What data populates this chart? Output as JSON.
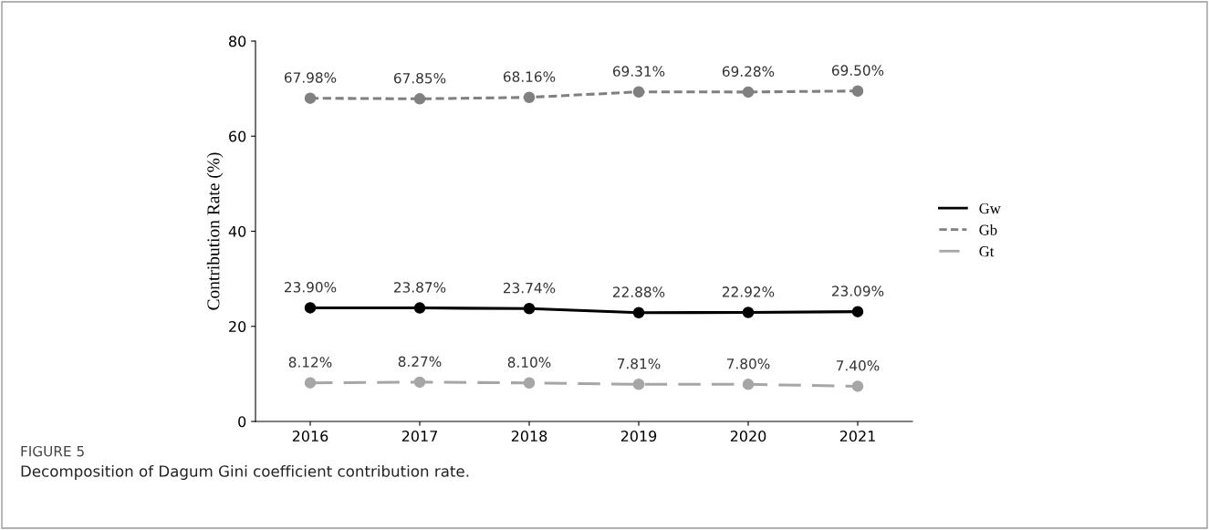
{
  "chart_data": {
    "type": "line",
    "ylabel": "Contribution Rate (%)",
    "categories": [
      "2016",
      "2017",
      "2018",
      "2019",
      "2020",
      "2021"
    ],
    "ylim": [
      0,
      80
    ],
    "yticks": [
      0,
      20,
      40,
      60,
      80
    ],
    "grid": false,
    "legend": "right",
    "marker": "circle",
    "series": [
      {
        "name": "Gw",
        "color": "#000000",
        "line_style": "solid",
        "values": [
          23.9,
          23.87,
          23.74,
          22.88,
          22.92,
          23.09
        ],
        "value_labels": [
          "23.90%",
          "23.87%",
          "23.74%",
          "22.88%",
          "22.92%",
          "23.09%"
        ]
      },
      {
        "name": "Gb",
        "color": "#808080",
        "line_style": "dashed",
        "values": [
          67.98,
          67.85,
          68.16,
          69.31,
          69.28,
          69.5
        ],
        "value_labels": [
          "67.98%",
          "67.85%",
          "68.16%",
          "69.31%",
          "69.28%",
          "69.50%"
        ]
      },
      {
        "name": "Gt",
        "color": "#a6a6a6",
        "line_style": "longdash",
        "values": [
          8.12,
          8.27,
          8.1,
          7.81,
          7.8,
          7.4
        ],
        "value_labels": [
          "8.12%",
          "8.27%",
          "8.10%",
          "7.81%",
          "7.80%",
          "7.40%"
        ]
      }
    ],
    "annotations": [
      "FIGURE 5",
      "Decomposition of Dagum Gini coefficient contribution rate."
    ]
  }
}
